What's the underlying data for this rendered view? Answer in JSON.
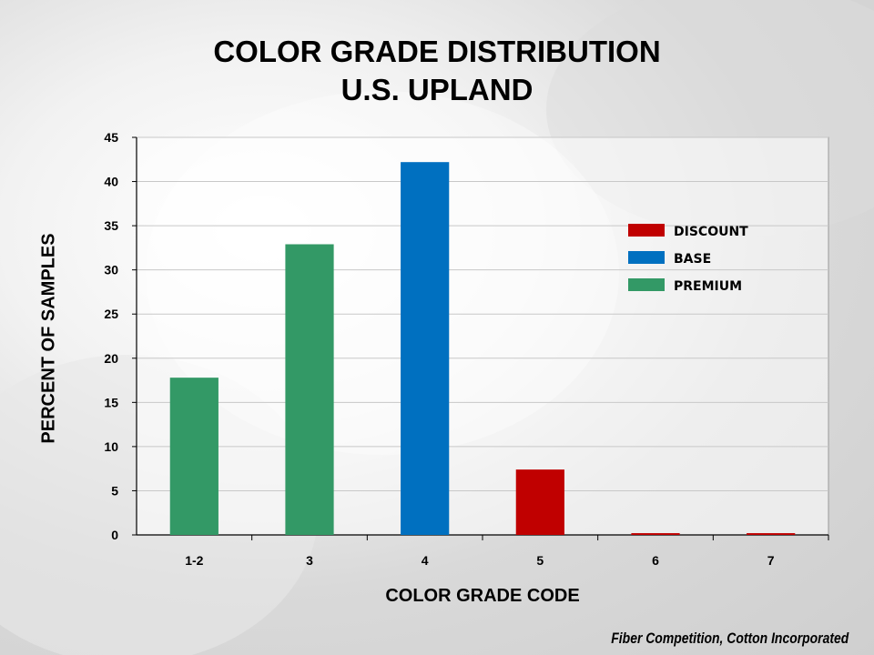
{
  "title_line1": "COLOR GRADE DISTRIBUTION",
  "title_line2": "U.S. UPLAND",
  "footer": "Fiber Competition, Cotton Incorporated",
  "colors": {
    "discount": "#C00000",
    "base": "#0070C0",
    "premium": "#339966"
  },
  "chart_data": {
    "type": "bar",
    "title": "COLOR GRADE DISTRIBUTION U.S. UPLAND",
    "xlabel": "COLOR GRADE CODE",
    "ylabel": "PERCENT OF SAMPLES",
    "categories": [
      "1-2",
      "3",
      "4",
      "5",
      "6",
      "7"
    ],
    "values": [
      17.8,
      32.9,
      42.2,
      7.4,
      0.2,
      0.2
    ],
    "bar_groups": [
      "PREMIUM",
      "PREMIUM",
      "BASE",
      "DISCOUNT",
      "DISCOUNT",
      "DISCOUNT"
    ],
    "ylim": [
      0,
      45
    ],
    "yticks": [
      0,
      5,
      10,
      15,
      20,
      25,
      30,
      35,
      40,
      45
    ],
    "grid": true,
    "legend_position": "top-right",
    "legend": [
      {
        "name": "DISCOUNT",
        "color": "#C00000"
      },
      {
        "name": "BASE",
        "color": "#0070C0"
      },
      {
        "name": "PREMIUM",
        "color": "#339966"
      }
    ]
  }
}
